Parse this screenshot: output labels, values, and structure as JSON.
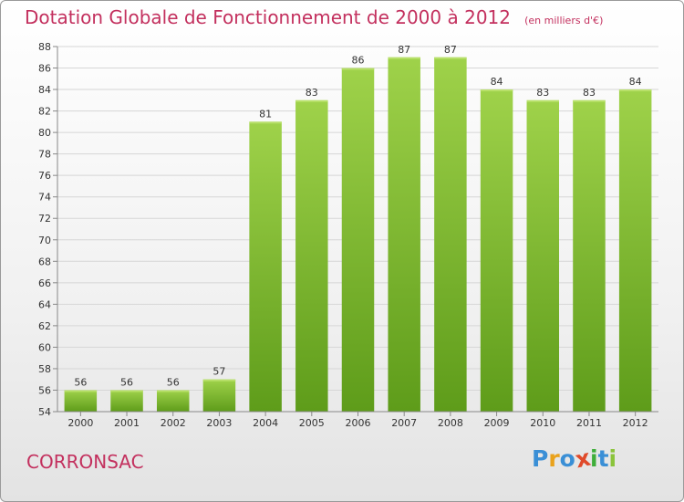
{
  "title": "Dotation Globale de Fonctionnement de 2000 à 2012",
  "subtitle": "(en milliers d'€)",
  "commune": "CORRONSAC",
  "logo": {
    "text": "Proxiti",
    "letters": [
      "P",
      "r",
      "o",
      "x",
      "i",
      "t",
      "i"
    ],
    "colors": [
      "#3a8fd6",
      "#e9a21c",
      "#3a8fd6",
      "#e04a2a",
      "#3fae3a",
      "#3a8fd6",
      "#8bc43c"
    ]
  },
  "colors": {
    "accent": "#c3305e",
    "bar_top": "#9fd24a",
    "bar_bottom": "#5e9c1a",
    "axis": "#888888",
    "grid": "#d6d6d6",
    "text": "#333333"
  },
  "chart_data": {
    "type": "bar",
    "categories": [
      "2000",
      "2001",
      "2002",
      "2003",
      "2004",
      "2005",
      "2006",
      "2007",
      "2008",
      "2009",
      "2010",
      "2011",
      "2012"
    ],
    "values": [
      56,
      56,
      56,
      57,
      81,
      83,
      86,
      87,
      87,
      84,
      83,
      83,
      84
    ],
    "ylim": [
      54,
      88
    ],
    "yticks": [
      54,
      56,
      58,
      60,
      62,
      64,
      66,
      68,
      70,
      72,
      74,
      76,
      78,
      80,
      82,
      84,
      86,
      88
    ],
    "xlabel": "",
    "ylabel": "",
    "grid": true,
    "data_labels": true
  }
}
